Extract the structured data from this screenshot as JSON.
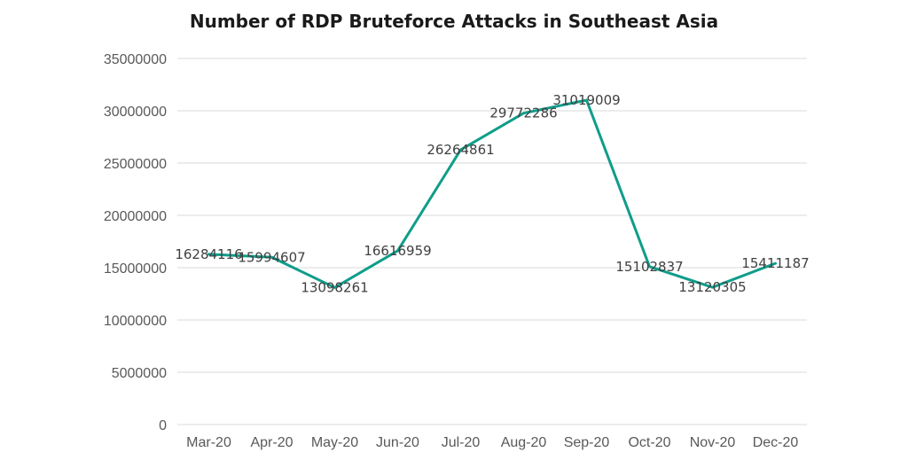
{
  "chart_data": {
    "type": "line",
    "title": "Number of RDP Bruteforce Attacks in Southeast Asia",
    "xlabel": "",
    "ylabel": "",
    "categories": [
      "Mar-20",
      "Apr-20",
      "May-20",
      "Jun-20",
      "Jul-20",
      "Aug-20",
      "Sep-20",
      "Oct-20",
      "Nov-20",
      "Dec-20"
    ],
    "series": [
      {
        "values": [
          16284116,
          15994607,
          13098261,
          16616959,
          26264861,
          29772286,
          31019009,
          15102837,
          13120305,
          15411187
        ],
        "color": "#0f9d8a"
      }
    ],
    "data_labels": [
      "16284116",
      "15994607",
      "13098261",
      "16616959",
      "26264861",
      "29772286",
      "31019009",
      "15102837",
      "13120305",
      "15411187"
    ],
    "ylim": [
      0,
      35000000
    ],
    "yticks": [
      0,
      5000000,
      10000000,
      15000000,
      20000000,
      25000000,
      30000000,
      35000000
    ],
    "ytick_labels": [
      "0",
      "5000000",
      "10000000",
      "15000000",
      "20000000",
      "25000000",
      "30000000",
      "35000000"
    ],
    "grid": true,
    "legend": "none",
    "colors": {
      "line": "#0f9d8a",
      "grid": "#d9d9d9",
      "tick_text": "#595959",
      "label_text": "#404040"
    }
  }
}
